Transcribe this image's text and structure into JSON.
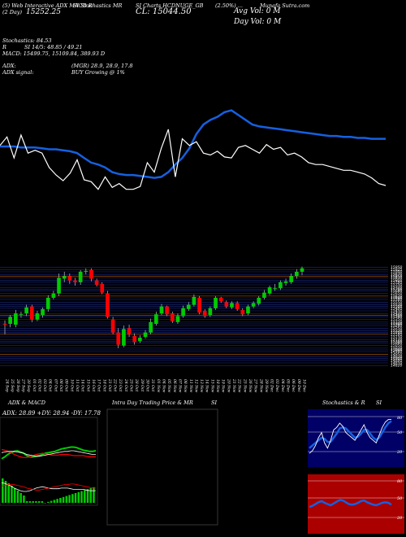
{
  "header": {
    "line1_left": "(5) Web Interactive ADX MACD R",
    "line1_mid": "SI Stochastics MR",
    "line1_ticker": "SI Charts HCDNUGE_GB",
    "line1_right": "(2.50%) ...",
    "line1_site": "Munafa Sutra.com",
    "line2_left": "(2 Day)",
    "line2_price_label": "15252.25",
    "close_text": "CL: 15044.50",
    "avg_vol_text": "Avg Vol: 0   M",
    "day_vol_text": "Day Vol: 0   M"
  },
  "indicators": {
    "stochastics": "Stochastics: 84.53",
    "rsi": "SI 14/5: 48.85 / 49.21",
    "rsi_prefix": "R",
    "macd": "MACD: 15499.75, 15109.84, 389.93 D",
    "adx_label": "ADX:",
    "adx_values": "(MGR) 28.9, 28.9, 17.8",
    "adx_signal_label": "ADX  signal:",
    "adx_signal": "BUY Growing @ 1%"
  },
  "bottom_panels": {
    "adx_title": "ADX  & MACD",
    "adx_values": "ADX: 28.89 +DY: 28.94  -DY: 17.78",
    "intraday_title": "Intra  Day Trading Price  & MR",
    "intraday_title_right": "SI",
    "stoch_title": "Stochastics & R",
    "stoch_title_right": "SI",
    "stoch_ticks": [
      "80",
      "50",
      "20"
    ],
    "rsi_ticks": [
      "80",
      "50",
      "20"
    ]
  },
  "colors": {
    "background": "#000000",
    "up_candle": "#00cc00",
    "down_candle": "#ff0000",
    "ema_line": "#1560e0",
    "price_line": "#ffffff",
    "grid_blue": "#1b2a8a",
    "grid_orange": "#c06010",
    "stoch_bg": "#000066",
    "rsi_bg": "#aa0000"
  },
  "chart_data": [
    {
      "type": "line",
      "name": "price-vs-ema",
      "series": [
        {
          "values": [
            47,
            47,
            47,
            46,
            46,
            46,
            45,
            44,
            44,
            43,
            42,
            40,
            35,
            30,
            28,
            25,
            20,
            18,
            17,
            17,
            16,
            15,
            14,
            15,
            20,
            28,
            35,
            45,
            60,
            70,
            75,
            78,
            83,
            85,
            80,
            75,
            70,
            68,
            67,
            66,
            65,
            64,
            63,
            62,
            61,
            60,
            59,
            58,
            58,
            57,
            57,
            56,
            56,
            55,
            55,
            55
          ]
        },
        {
          "values": [
            48,
            57,
            35,
            59,
            40,
            43,
            40,
            25,
            17,
            11,
            19,
            33,
            12,
            10,
            2,
            15,
            4,
            8,
            2,
            2,
            5,
            30,
            20,
            45,
            65,
            15,
            55,
            48,
            52,
            40,
            38,
            42,
            36,
            35,
            46,
            48,
            44,
            40,
            49,
            44,
            46,
            38,
            40,
            36,
            30,
            28,
            28,
            26,
            24,
            22,
            22,
            20,
            18,
            14,
            8,
            6
          ]
        }
      ]
    },
    {
      "type": "candlestick",
      "name": "daily-candles",
      "ylim": [
        14700,
        16050
      ],
      "price_labels": [
        "15950",
        "15925",
        "15900",
        "15870",
        "15850",
        "15830",
        "15800",
        "15780",
        "15750",
        "15720",
        "15700",
        "15680",
        "15650",
        "15620",
        "15600",
        "15580",
        "15550",
        "15520",
        "15500",
        "15480",
        "15450",
        "15420",
        "15400",
        "15380",
        "15350",
        "15320",
        "15300",
        "15280",
        "15250",
        "15220",
        "15200",
        "15180",
        "15150",
        "15120",
        "15100",
        "15080",
        "15050",
        "15020",
        "15000",
        "14980",
        "14950",
        "14920",
        "14900",
        "14880",
        "14850",
        "14820"
      ],
      "dates": [
        "24 Sep",
        "25 Sep",
        "26 Sep",
        "27 Sep",
        "30 Sep",
        "01 Oct",
        "02 Oct",
        "03 Oct",
        "04 Oct",
        "07 Oct",
        "08 Oct",
        "09 Oct",
        "10 Oct",
        "11 Oct",
        "14 Oct",
        "15 Oct",
        "16 Oct",
        "17 Oct",
        "18 Oct",
        "21 Oct",
        "22 Oct",
        "23 Oct",
        "24 Oct",
        "25 Oct",
        "28 Oct",
        "29 Oct",
        "30 Oct",
        "31 Oct",
        "01 Nov",
        "04 Nov",
        "05 Nov",
        "06 Nov",
        "07 Nov",
        "08 Nov",
        "11 Nov",
        "12 Nov",
        "13 Nov",
        "14 Nov",
        "15 Nov",
        "18 Nov",
        "19 Nov",
        "20 Nov",
        "21 Nov",
        "22 Nov",
        "25 Nov",
        "26 Nov",
        "27 Nov",
        "28 Nov",
        "29 Nov",
        "02 Dec",
        "03 Dec",
        "04 Dec",
        "05 Dec",
        "06 Dec",
        "09 Dec",
        "10 Dec"
      ],
      "open": [
        15300,
        15300,
        15290,
        15400,
        15420,
        15500,
        15350,
        15400,
        15470,
        15600,
        15650,
        15820,
        15850,
        15800,
        15780,
        15900,
        15920,
        15800,
        15760,
        15650,
        15350,
        15200,
        15050,
        15250,
        15160,
        15100,
        15150,
        15200,
        15300,
        15420,
        15500,
        15420,
        15320,
        15390,
        15470,
        15520,
        15600,
        15450,
        15400,
        15480,
        15600,
        15550,
        15490,
        15540,
        15460,
        15420,
        15500,
        15530,
        15600,
        15650,
        15700,
        15710,
        15770,
        15780,
        15850,
        15900
      ],
      "close": [
        15290,
        15380,
        15420,
        15410,
        15490,
        15350,
        15420,
        15470,
        15600,
        15650,
        15830,
        15850,
        15800,
        15780,
        15900,
        15910,
        15820,
        15750,
        15660,
        15380,
        15200,
        15060,
        15240,
        15180,
        15090,
        15140,
        15200,
        15320,
        15410,
        15500,
        15410,
        15330,
        15390,
        15480,
        15520,
        15610,
        15430,
        15390,
        15480,
        15600,
        15560,
        15500,
        15540,
        15470,
        15410,
        15500,
        15540,
        15600,
        15660,
        15720,
        15710,
        15780,
        15790,
        15850,
        15900,
        15940
      ],
      "high": [
        15340,
        15400,
        15460,
        15440,
        15520,
        15520,
        15450,
        15490,
        15630,
        15680,
        15880,
        15900,
        15880,
        15830,
        15920,
        15940,
        15940,
        15820,
        15780,
        15680,
        15380,
        15250,
        15280,
        15290,
        15190,
        15170,
        15230,
        15360,
        15440,
        15530,
        15510,
        15440,
        15420,
        15510,
        15550,
        15640,
        15620,
        15470,
        15500,
        15620,
        15610,
        15570,
        15560,
        15560,
        15480,
        15520,
        15560,
        15620,
        15690,
        15740,
        15760,
        15800,
        15820,
        15880,
        15930,
        15960
      ],
      "low": [
        15180,
        15260,
        15260,
        15370,
        15390,
        15320,
        15330,
        15370,
        15440,
        15580,
        15620,
        15780,
        15760,
        15740,
        15750,
        15870,
        15790,
        15730,
        15640,
        15360,
        15180,
        15020,
        15030,
        15150,
        15060,
        15080,
        15130,
        15180,
        15280,
        15400,
        15390,
        15310,
        15300,
        15370,
        15450,
        15500,
        15410,
        15370,
        15380,
        15460,
        15540,
        15480,
        15470,
        15450,
        15390,
        15400,
        15480,
        15510,
        15580,
        15630,
        15680,
        15690,
        15740,
        15760,
        15820,
        15860
      ]
    },
    {
      "type": "line",
      "name": "adx-macd",
      "series": [
        {
          "values": [
            15,
            18,
            22,
            25,
            27,
            28,
            26,
            24,
            20,
            18,
            18,
            19,
            20,
            22,
            24,
            25,
            26,
            27,
            29,
            31,
            32,
            33,
            34,
            34,
            33,
            31,
            29,
            28,
            27,
            27,
            28
          ]
        },
        {
          "values": [
            30,
            29,
            27,
            25,
            22,
            20,
            18,
            17,
            17,
            18,
            20,
            22,
            23,
            24,
            23,
            22,
            21,
            21,
            21,
            22,
            22,
            22,
            21,
            20,
            20,
            20,
            20,
            19,
            18,
            18,
            18
          ]
        },
        {
          "values": [
            25,
            26,
            27,
            27,
            27,
            26,
            25,
            24,
            22,
            21,
            20,
            19,
            19,
            20,
            21,
            22,
            23,
            24,
            25,
            26,
            27,
            27,
            28,
            28,
            27,
            26,
            25,
            24,
            23,
            22,
            22
          ]
        }
      ]
    },
    {
      "type": "line",
      "name": "stochastics",
      "ylim": [
        0,
        100
      ],
      "series": [
        {
          "values": [
            20,
            25,
            35,
            50,
            60,
            40,
            30,
            45,
            65,
            70,
            78,
            72,
            60,
            55,
            50,
            45,
            55,
            65,
            75,
            60,
            50,
            45,
            40,
            55,
            70,
            80,
            85,
            85
          ]
        },
        {
          "values": [
            30,
            35,
            40,
            45,
            50,
            48,
            42,
            42,
            50,
            58,
            68,
            70,
            68,
            62,
            56,
            50,
            52,
            58,
            65,
            65,
            58,
            50,
            46,
            50,
            60,
            70,
            78,
            82
          ]
        }
      ]
    },
    {
      "type": "line",
      "name": "rsi",
      "ylim": [
        0,
        100
      ],
      "series": [
        {
          "values": [
            45,
            47,
            50,
            53,
            55,
            52,
            50,
            48,
            51,
            54,
            57,
            56,
            53,
            50,
            49,
            50,
            52,
            55,
            56,
            53,
            51,
            49,
            48,
            50,
            52,
            53,
            52,
            49
          ]
        }
      ]
    }
  ]
}
